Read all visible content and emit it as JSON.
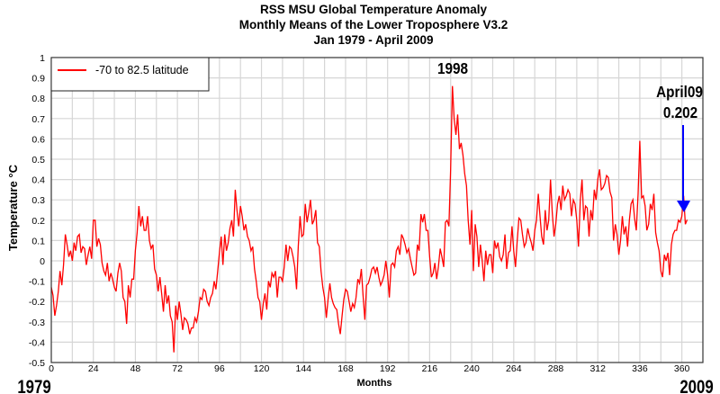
{
  "chart_data": {
    "type": "line",
    "title": [
      "RSS MSU Global Temperature Anomaly",
      "Monthly Means of the Lower Troposphere V3.2",
      "Jan 1979 - April 2009"
    ],
    "xlabel": "Months",
    "ylabel": "Temperature °C",
    "xlim": [
      0,
      372
    ],
    "ylim": [
      -0.5,
      1
    ],
    "xticks": [
      0,
      24,
      48,
      72,
      96,
      120,
      144,
      168,
      192,
      216,
      240,
      264,
      288,
      312,
      336,
      360
    ],
    "yticks": [
      "1",
      "0.9",
      "0.8",
      "0.7",
      "0.6",
      "0.5",
      "0.4",
      "0.3",
      "0.2",
      "0.1",
      "0",
      "-0.1",
      "-0.2",
      "-0.3",
      "-0.4",
      "-0.5"
    ],
    "grid": true,
    "legend_position": "top-left",
    "x_start_label": "1979",
    "x_end_label": "2009",
    "series": [
      {
        "name": "-70 to 82.5 latitude",
        "color": "#ff0000",
        "values": [
          -0.13,
          -0.17,
          -0.27,
          -0.22,
          -0.15,
          -0.05,
          -0.12,
          -0.02,
          0.13,
          0.08,
          0.02,
          0.05,
          0.0,
          0.09,
          0.05,
          0.12,
          0.13,
          0.04,
          0.07,
          0.06,
          -0.02,
          0.03,
          0.07,
          0.01,
          0.2,
          0.2,
          0.07,
          0.11,
          0.08,
          -0.01,
          -0.05,
          -0.07,
          -0.01,
          -0.1,
          -0.06,
          -0.09,
          -0.13,
          -0.15,
          -0.06,
          -0.01,
          -0.05,
          -0.18,
          -0.2,
          -0.31,
          -0.12,
          -0.18,
          -0.09,
          -0.09,
          0.05,
          0.14,
          0.27,
          0.17,
          0.22,
          0.15,
          0.15,
          0.22,
          0.1,
          0.06,
          0.08,
          -0.04,
          -0.07,
          -0.15,
          -0.08,
          -0.16,
          -0.25,
          -0.12,
          -0.21,
          -0.17,
          -0.27,
          -0.3,
          -0.45,
          -0.22,
          -0.29,
          -0.2,
          -0.26,
          -0.34,
          -0.28,
          -0.29,
          -0.31,
          -0.36,
          -0.33,
          -0.33,
          -0.28,
          -0.3,
          -0.25,
          -0.18,
          -0.19,
          -0.14,
          -0.15,
          -0.2,
          -0.22,
          -0.18,
          -0.16,
          -0.1,
          -0.14,
          -0.05,
          0.04,
          0.12,
          -0.02,
          0.13,
          0.05,
          0.09,
          0.16,
          0.2,
          0.12,
          0.35,
          0.25,
          0.17,
          0.27,
          0.22,
          0.15,
          0.18,
          0.12,
          0.1,
          0.05,
          0.07,
          -0.04,
          -0.1,
          -0.18,
          -0.2,
          -0.29,
          -0.21,
          -0.16,
          -0.24,
          -0.1,
          -0.13,
          -0.06,
          -0.08,
          -0.05,
          -0.18,
          -0.08,
          -0.08,
          -0.1,
          -0.03,
          0.08,
          0.0,
          0.07,
          0.06,
          0.02,
          -0.03,
          -0.14,
          0.07,
          0.22,
          0.12,
          0.13,
          0.28,
          0.19,
          0.24,
          0.3,
          0.18,
          0.2,
          0.25,
          0.09,
          0.07,
          -0.05,
          -0.13,
          -0.18,
          -0.28,
          -0.19,
          -0.11,
          -0.18,
          -0.21,
          -0.23,
          -0.24,
          -0.31,
          -0.36,
          -0.27,
          -0.19,
          -0.14,
          -0.15,
          -0.2,
          -0.25,
          -0.21,
          -0.23,
          -0.18,
          -0.09,
          -0.11,
          -0.04,
          -0.17,
          -0.29,
          -0.12,
          -0.11,
          -0.08,
          -0.04,
          -0.03,
          -0.06,
          -0.03,
          -0.08,
          -0.12,
          -0.1,
          -0.07,
          0.0,
          -0.07,
          -0.18,
          -0.02,
          -0.01,
          -0.03,
          0.05,
          0.07,
          0.03,
          0.13,
          0.11,
          0.08,
          0.04,
          0.06,
          0.01,
          -0.03,
          -0.07,
          -0.06,
          0.08,
          0.05,
          0.23,
          0.19,
          0.23,
          0.15,
          0.15,
          0.02,
          -0.08,
          -0.06,
          -0.01,
          -0.09,
          -0.03,
          0.06,
          0.02,
          -0.03,
          0.19,
          0.2,
          0.17,
          0.45,
          0.86,
          0.7,
          0.62,
          0.72,
          0.55,
          0.58,
          0.52,
          0.43,
          0.37,
          0.2,
          0.08,
          0.25,
          -0.05,
          0.18,
          0.12,
          -0.03,
          0.08,
          0.0,
          -0.1,
          0.05,
          -0.02,
          0.03,
          0.03,
          -0.06,
          0.1,
          0.06,
          0.09,
          0.02,
          0.0,
          0.03,
          0.13,
          -0.04,
          0.04,
          0.05,
          0.17,
          0.05,
          -0.03,
          0.1,
          0.21,
          0.2,
          0.13,
          0.07,
          0.09,
          0.16,
          0.12,
          0.09,
          0.05,
          0.15,
          0.2,
          0.33,
          0.22,
          0.12,
          0.08,
          0.25,
          0.15,
          0.2,
          0.4,
          0.24,
          0.12,
          0.18,
          0.28,
          0.32,
          0.25,
          0.37,
          0.3,
          0.32,
          0.35,
          0.33,
          0.22,
          0.3,
          0.28,
          0.2,
          0.07,
          0.3,
          0.4,
          0.2,
          0.27,
          0.26,
          0.12,
          0.25,
          0.2,
          0.35,
          0.3,
          0.4,
          0.45,
          0.35,
          0.36,
          0.38,
          0.42,
          0.41,
          0.34,
          0.31,
          0.1,
          0.18,
          0.13,
          0.03,
          0.1,
          0.22,
          0.13,
          0.17,
          0.07,
          0.2,
          0.28,
          0.3,
          0.21,
          0.15,
          0.33,
          0.59,
          0.31,
          0.32,
          0.27,
          0.15,
          0.18,
          0.28,
          0.25,
          0.33,
          0.14,
          0.09,
          0.05,
          -0.05,
          -0.08,
          0.03,
          0.0,
          0.04,
          -0.07,
          0.08,
          0.13,
          0.15,
          0.15,
          0.2,
          0.19,
          0.22,
          0.32,
          0.18,
          0.202
        ]
      }
    ],
    "annotations": [
      {
        "text": "1998",
        "x": 229,
        "y": 0.86
      },
      {
        "text": "April09",
        "x": 363,
        "y": 0.202
      },
      {
        "text": "0.202",
        "x": 363,
        "y": 0.202,
        "arrow_color": "#0000ff"
      }
    ]
  }
}
